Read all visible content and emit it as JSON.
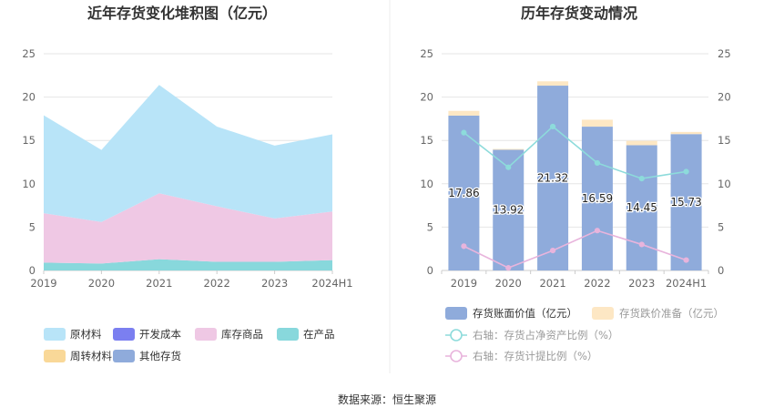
{
  "source_label": "数据来源：恒生聚源",
  "colors": {
    "raw_materials": "#b8e4f8",
    "dev_cost": "#7b7ff0",
    "finished_goods": "#efc8e4",
    "wip": "#88d8dc",
    "turnover_materials": "#f9d898",
    "other_inventory": "#8fabdb",
    "book_value": "#8fabdb",
    "impairment_reserve": "#fde7c4",
    "net_asset_ratio_line": "#8ddbdb",
    "provision_ratio_line": "#e8b4dc",
    "grid": "#e6e6e6",
    "axis": "#cccccc"
  },
  "chart_data": [
    {
      "type": "area",
      "title": "近年存货变化堆积图（亿元）",
      "categories": [
        "2019",
        "2020",
        "2021",
        "2022",
        "2023",
        "2024H1"
      ],
      "ylim": [
        0,
        25
      ],
      "yticks": [
        "0",
        "5",
        "10",
        "15",
        "20",
        "25"
      ],
      "stacked": true,
      "grid": true,
      "legend_position": "bottom",
      "legend": [
        {
          "name": "原材料",
          "color_key": "raw_materials"
        },
        {
          "name": "开发成本",
          "color_key": "dev_cost"
        },
        {
          "name": "库存商品",
          "color_key": "finished_goods"
        },
        {
          "name": "在产品",
          "color_key": "wip"
        },
        {
          "name": "周转材料",
          "color_key": "turnover_materials"
        },
        {
          "name": "其他存货",
          "color_key": "other_inventory"
        }
      ],
      "series": [
        {
          "name": "在产品",
          "color_key": "wip",
          "values": [
            0.9,
            0.8,
            1.3,
            1.0,
            1.0,
            1.2
          ]
        },
        {
          "name": "库存商品",
          "color_key": "finished_goods",
          "values": [
            5.7,
            4.8,
            7.6,
            6.4,
            5.0,
            5.6
          ]
        },
        {
          "name": "原材料",
          "color_key": "raw_materials",
          "values": [
            11.3,
            8.3,
            12.5,
            9.2,
            8.4,
            8.9
          ]
        }
      ]
    },
    {
      "type": "bar",
      "title": "历年存货变动情况",
      "categories": [
        "2019",
        "2020",
        "2021",
        "2022",
        "2023",
        "2024H1"
      ],
      "ylim": [
        0,
        25
      ],
      "y2lim": [
        0,
        25
      ],
      "yticks": [
        "0",
        "5",
        "10",
        "15",
        "20",
        "25"
      ],
      "y2ticks": [
        "0",
        "5",
        "10",
        "15",
        "20",
        "25"
      ],
      "grid": true,
      "legend_position": "bottom",
      "stacked": true,
      "series": [
        {
          "name": "存货账面价值（亿元）",
          "color_key": "book_value",
          "values": [
            17.86,
            13.92,
            21.32,
            16.59,
            14.45,
            15.73
          ],
          "labels": [
            "17.86",
            "13.92",
            "21.32",
            "16.59",
            "14.45",
            "15.73"
          ]
        },
        {
          "name": "存货跌价准备（亿元）",
          "color_key": "impairment_reserve",
          "values": [
            0.55,
            0.1,
            0.5,
            0.8,
            0.5,
            0.25
          ]
        }
      ],
      "lines": [
        {
          "name": "右轴：存货占净资产比例（%）",
          "color_key": "net_asset_ratio_line",
          "axis": "right",
          "values": [
            15.9,
            11.9,
            16.6,
            12.4,
            10.6,
            11.4
          ]
        },
        {
          "name": "右轴：存货计提比例（%）",
          "color_key": "provision_ratio_line",
          "axis": "right",
          "values": [
            2.8,
            0.3,
            2.3,
            4.6,
            3.0,
            1.2
          ]
        }
      ]
    }
  ]
}
